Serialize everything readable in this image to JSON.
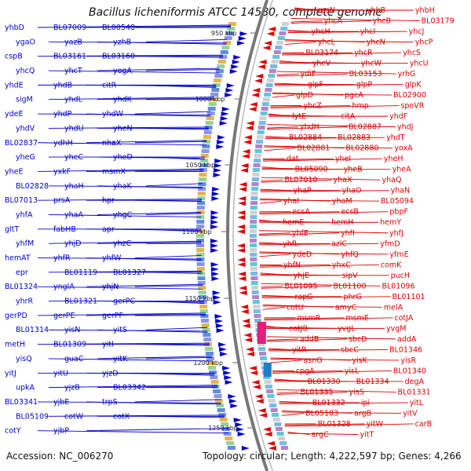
{
  "title": "Bacillus licheniformis ATCC 14580, complete genome",
  "footer": {
    "accession": "Accession: NC_006270",
    "topology": "Topology: circular; Length: 4,222,597 bp; Genes: 4,266"
  },
  "colors": {
    "left_strand": "#0000cc",
    "right_strand": "#dd0000",
    "backbone": "#777777"
  },
  "scale_ticks": [
    "950 kbp",
    "1000 kbp",
    "1050 kbp",
    "1100 kbp",
    "1150 kbp",
    "1200 kbp",
    "1250 kbp"
  ],
  "left_labels": [
    {
      "t": "yhbD"
    },
    {
      "t": "BL07009"
    },
    {
      "t": "BL00548"
    },
    {
      "t": "ygaO"
    },
    {
      "t": "yazB"
    },
    {
      "t": "yzhB"
    },
    {
      "t": "cspB"
    },
    {
      "t": "BL03161"
    },
    {
      "t": "BL03160"
    },
    {
      "t": "yhcQ"
    },
    {
      "t": "yhcT"
    },
    {
      "t": "yogA"
    },
    {
      "t": "yhdE"
    },
    {
      "t": "yhdB"
    },
    {
      "t": "citR"
    },
    {
      "t": "sigM"
    },
    {
      "t": "yhdL"
    },
    {
      "t": "yhdK"
    },
    {
      "t": "ydeE"
    },
    {
      "t": "yhdP"
    },
    {
      "t": "yhdW"
    },
    {
      "t": "yhdV"
    },
    {
      "t": "yhdU"
    },
    {
      "t": "yheN"
    },
    {
      "t": "BL02837"
    },
    {
      "t": "ydhH"
    },
    {
      "t": "nhaX"
    },
    {
      "t": "yheG"
    },
    {
      "t": "yheC"
    },
    {
      "t": "yheD"
    },
    {
      "t": "yheE"
    },
    {
      "t": "yxkF"
    },
    {
      "t": "msmX"
    },
    {
      "t": "BL02828"
    },
    {
      "t": "yhaH"
    },
    {
      "t": "yhaK"
    },
    {
      "t": "BL07013"
    },
    {
      "t": "prsA"
    },
    {
      "t": "hpr"
    },
    {
      "t": "yhfA"
    },
    {
      "t": "yhaA"
    },
    {
      "t": "yhgC"
    },
    {
      "t": "gltT"
    },
    {
      "t": "fabHB"
    },
    {
      "t": "apr"
    },
    {
      "t": "yhfM"
    },
    {
      "t": "yhjD"
    },
    {
      "t": "yhzC"
    },
    {
      "t": "hemAT"
    },
    {
      "t": "yhfR"
    },
    {
      "t": "yhfW"
    },
    {
      "t": "epr"
    },
    {
      "t": "BL01119"
    },
    {
      "t": "BL01327"
    },
    {
      "t": "BL01324"
    },
    {
      "t": "ynglA"
    },
    {
      "t": "yhjN"
    },
    {
      "t": "yhrR"
    },
    {
      "t": "BL01321"
    },
    {
      "t": "gerPC"
    },
    {
      "t": "gerPD"
    },
    {
      "t": "gerPE"
    },
    {
      "t": "gerPF"
    },
    {
      "t": "BL01314"
    },
    {
      "t": "yisN"
    },
    {
      "t": "yitS"
    },
    {
      "t": "metH"
    },
    {
      "t": "BL01309"
    },
    {
      "t": "yitI"
    },
    {
      "t": "yisQ"
    },
    {
      "t": "guaC"
    },
    {
      "t": "yitK"
    },
    {
      "t": "yitJ"
    },
    {
      "t": "yitU"
    },
    {
      "t": "yjzD"
    },
    {
      "t": "upkA"
    },
    {
      "t": "yjzB"
    },
    {
      "t": "BL03342"
    },
    {
      "t": "BL03341"
    },
    {
      "t": "yjbE"
    },
    {
      "t": "trpS"
    },
    {
      "t": "BL05109"
    },
    {
      "t": "cotW"
    },
    {
      "t": "cotX"
    },
    {
      "t": "cotY"
    },
    {
      "t": "yjbP"
    }
  ],
  "right_labels": [
    {
      "t": "rpsN"
    },
    {
      "t": "yhbB"
    },
    {
      "t": "yhbH"
    },
    {
      "t": "yhcA"
    },
    {
      "t": "yhcB"
    },
    {
      "t": "BL03179"
    },
    {
      "t": "yhcH"
    },
    {
      "t": "yhcI"
    },
    {
      "t": "yhcJ"
    },
    {
      "t": "yhcL"
    },
    {
      "t": "yhcN"
    },
    {
      "t": "yhcP"
    },
    {
      "t": "BL03174"
    },
    {
      "t": "yhcR"
    },
    {
      "t": "yhcS"
    },
    {
      "t": "yhcV"
    },
    {
      "t": "yhcW"
    },
    {
      "t": "yhcU"
    },
    {
      "t": "ydiF"
    },
    {
      "t": "BL03153"
    },
    {
      "t": "yrhG"
    },
    {
      "t": "glpF"
    },
    {
      "t": "glpP"
    },
    {
      "t": "glpK"
    },
    {
      "t": "glpD"
    },
    {
      "t": "pgcA"
    },
    {
      "t": "BL02900"
    },
    {
      "t": "yhcZ"
    },
    {
      "t": "hmp"
    },
    {
      "t": "spoVR"
    },
    {
      "t": "lytE"
    },
    {
      "t": "citA"
    },
    {
      "t": "yhdF"
    },
    {
      "t": "yhdH"
    },
    {
      "t": "BL02887"
    },
    {
      "t": "yhdJ"
    },
    {
      "t": "BL02884"
    },
    {
      "t": "BL02883"
    },
    {
      "t": "yhdT"
    },
    {
      "t": "BL02881"
    },
    {
      "t": "BL02880"
    },
    {
      "t": "yoxA"
    },
    {
      "t": "dat"
    },
    {
      "t": "yheI"
    },
    {
      "t": "yheH"
    },
    {
      "t": "BL05090"
    },
    {
      "t": "yheB"
    },
    {
      "t": "yheA"
    },
    {
      "t": "BL07010"
    },
    {
      "t": "yhaX"
    },
    {
      "t": "yhaQ"
    },
    {
      "t": "yhaP"
    },
    {
      "t": "yhaO"
    },
    {
      "t": "yhaN"
    },
    {
      "t": "yhaI"
    },
    {
      "t": "yhaM"
    },
    {
      "t": "BL05094"
    },
    {
      "t": "ecsA"
    },
    {
      "t": "ecsB"
    },
    {
      "t": "pbpF"
    },
    {
      "t": "hemE"
    },
    {
      "t": "hemH"
    },
    {
      "t": "hemY"
    },
    {
      "t": "yhfE"
    },
    {
      "t": "yhfI"
    },
    {
      "t": "yhfJ"
    },
    {
      "t": "yhfL"
    },
    {
      "t": "azlC"
    },
    {
      "t": "yfmD"
    },
    {
      "t": "ydeD"
    },
    {
      "t": "yhfQ"
    },
    {
      "t": "yfmE"
    },
    {
      "t": "yhfN"
    },
    {
      "t": "yhxC"
    },
    {
      "t": "comK"
    },
    {
      "t": "yhjE"
    },
    {
      "t": "sipV"
    },
    {
      "t": "pucH"
    },
    {
      "t": "BL01095"
    },
    {
      "t": "BL01100"
    },
    {
      "t": "BL01096"
    },
    {
      "t": "rapG"
    },
    {
      "t": "phrG"
    },
    {
      "t": "BL01101"
    },
    {
      "t": "cotU"
    },
    {
      "t": "amyC"
    },
    {
      "t": "melA"
    },
    {
      "t": "msmR"
    },
    {
      "t": "msmE"
    },
    {
      "t": "cotJA"
    },
    {
      "t": "cotJB"
    },
    {
      "t": "yvgL"
    },
    {
      "t": "yvgM"
    },
    {
      "t": "addB"
    },
    {
      "t": "sbcD"
    },
    {
      "t": "addA"
    },
    {
      "t": "yitR"
    },
    {
      "t": "sbcC"
    },
    {
      "t": "BL01346"
    },
    {
      "t": "asnO"
    },
    {
      "t": "yisK"
    },
    {
      "t": "yisR"
    },
    {
      "t": "cpgA"
    },
    {
      "t": "yisL"
    },
    {
      "t": "BL01340"
    },
    {
      "t": "BL01330"
    },
    {
      "t": "BL01334"
    },
    {
      "t": "degA"
    },
    {
      "t": "BL01335"
    },
    {
      "t": "yisS"
    },
    {
      "t": "BL01331"
    },
    {
      "t": "BL01332"
    },
    {
      "t": "ipi"
    },
    {
      "t": "yitL"
    },
    {
      "t": "BL05103"
    },
    {
      "t": "argB"
    },
    {
      "t": "yitV"
    },
    {
      "t": "BL01328"
    },
    {
      "t": "yitW"
    },
    {
      "t": "carB"
    },
    {
      "t": "argC"
    },
    {
      "t": "yitT"
    }
  ]
}
